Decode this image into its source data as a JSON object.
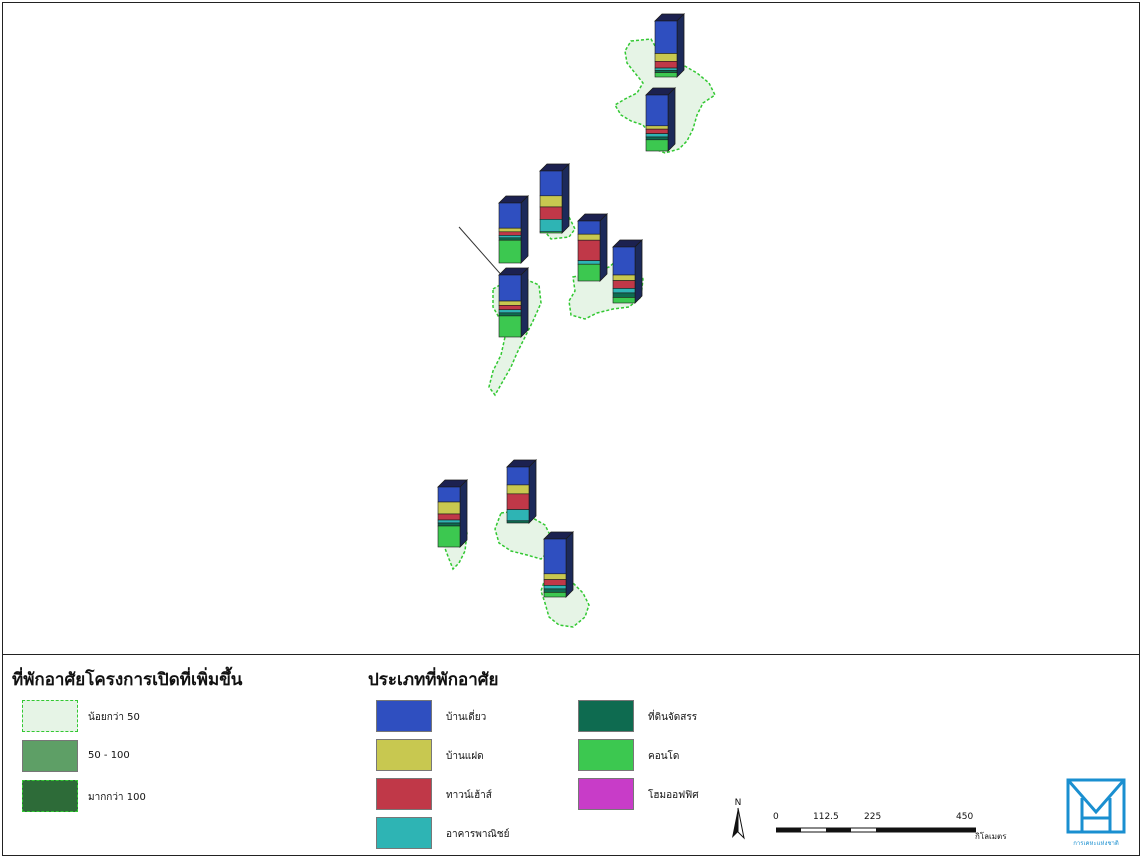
{
  "legend_area": {
    "title": "ที่พักอาศัยโครงการเปิดที่เพิ่มขึ้น",
    "items": [
      {
        "label": "น้อยกว่า 50",
        "color": "#e6f4e6",
        "style": "dashed"
      },
      {
        "label": "50 - 100",
        "color": "#5e9f66",
        "style": "solid"
      },
      {
        "label": "มากกว่า 100",
        "color": "#2d6b38",
        "style": "dashed"
      }
    ]
  },
  "legend_type": {
    "title": "ประเภทที่พักอาศัย",
    "items": [
      {
        "label": "บ้านเดี่ยว",
        "color": "#2f4fc0"
      },
      {
        "label": "บ้านแฝด",
        "color": "#c8c850"
      },
      {
        "label": "ทาวน์เฮ้าส์",
        "color": "#c03848"
      },
      {
        "label": "อาคารพาณิชย์",
        "color": "#2eb4b4"
      },
      {
        "label": "ที่ดินจัดสรร",
        "color": "#0e6b50"
      },
      {
        "label": "คอนโด",
        "color": "#3cc850"
      },
      {
        "label": "โฮมออฟฟิศ",
        "color": "#c83cc8"
      }
    ]
  },
  "map": {
    "colors": {
      "region_fill": "#e6f4e6",
      "region_stroke": "#32c832",
      "bar_outline": "#1a1a1a",
      "bar_side": "#1c2a5a",
      "bar_top": "#1c2150"
    },
    "stacked_bars": [
      {
        "name": "bar-1",
        "segments": [
          {
            "type": 0,
            "share": 0.58
          },
          {
            "type": 1,
            "share": 0.14
          },
          {
            "type": 2,
            "share": 0.12
          },
          {
            "type": 3,
            "share": 0.04
          },
          {
            "type": 4,
            "share": 0.04
          },
          {
            "type": 5,
            "share": 0.08
          }
        ]
      },
      {
        "name": "bar-2",
        "segments": [
          {
            "type": 0,
            "share": 0.55
          },
          {
            "type": 1,
            "share": 0.06
          },
          {
            "type": 2,
            "share": 0.08
          },
          {
            "type": 3,
            "share": 0.06
          },
          {
            "type": 4,
            "share": 0.05
          },
          {
            "type": 5,
            "share": 0.2
          }
        ]
      },
      {
        "name": "bar-3",
        "segments": [
          {
            "type": 0,
            "share": 0.4
          },
          {
            "type": 1,
            "share": 0.18
          },
          {
            "type": 2,
            "share": 0.2
          },
          {
            "type": 3,
            "share": 0.2
          },
          {
            "type": 5,
            "share": 0.02
          }
        ]
      },
      {
        "name": "bar-4",
        "segments": [
          {
            "type": 0,
            "share": 0.42
          },
          {
            "type": 1,
            "share": 0.06
          },
          {
            "type": 2,
            "share": 0.06
          },
          {
            "type": 3,
            "share": 0.04
          },
          {
            "type": 4,
            "share": 0.04
          },
          {
            "type": 5,
            "share": 0.38
          }
        ]
      },
      {
        "name": "bar-5",
        "segments": [
          {
            "type": 0,
            "share": 0.22
          },
          {
            "type": 1,
            "share": 0.1
          },
          {
            "type": 2,
            "share": 0.34
          },
          {
            "type": 3,
            "share": 0.06
          },
          {
            "type": 5,
            "share": 0.28
          }
        ]
      },
      {
        "name": "bar-6",
        "segments": [
          {
            "type": 0,
            "share": 0.5
          },
          {
            "type": 1,
            "share": 0.1
          },
          {
            "type": 2,
            "share": 0.14
          },
          {
            "type": 3,
            "share": 0.08
          },
          {
            "type": 4,
            "share": 0.08
          },
          {
            "type": 5,
            "share": 0.1
          }
        ]
      },
      {
        "name": "bar-7",
        "segments": [
          {
            "type": 0,
            "share": 0.42
          },
          {
            "type": 1,
            "share": 0.07
          },
          {
            "type": 2,
            "share": 0.07
          },
          {
            "type": 3,
            "share": 0.05
          },
          {
            "type": 4,
            "share": 0.05
          },
          {
            "type": 5,
            "share": 0.34
          }
        ]
      },
      {
        "name": "bar-8",
        "segments": [
          {
            "type": 0,
            "share": 0.25
          },
          {
            "type": 1,
            "share": 0.2
          },
          {
            "type": 2,
            "share": 0.1
          },
          {
            "type": 3,
            "share": 0.05
          },
          {
            "type": 4,
            "share": 0.05
          },
          {
            "type": 5,
            "share": 0.35
          }
        ]
      },
      {
        "name": "bar-9",
        "segments": [
          {
            "type": 0,
            "share": 0.32
          },
          {
            "type": 1,
            "share": 0.16
          },
          {
            "type": 2,
            "share": 0.28
          },
          {
            "type": 3,
            "share": 0.2
          },
          {
            "type": 4,
            "share": 0.04
          }
        ]
      },
      {
        "name": "bar-10",
        "segments": [
          {
            "type": 0,
            "share": 0.6
          },
          {
            "type": 1,
            "share": 0.1
          },
          {
            "type": 2,
            "share": 0.1
          },
          {
            "type": 3,
            "share": 0.06
          },
          {
            "type": 4,
            "share": 0.06
          },
          {
            "type": 5,
            "share": 0.08
          }
        ]
      }
    ]
  },
  "north_label": "N",
  "scale": {
    "ticks": [
      "0",
      "112.5",
      "225",
      "450"
    ],
    "unit": "กิโลเมตร"
  },
  "logo": {
    "text": "การเคหะแห่งชาติ",
    "color": "#1a8fd0"
  }
}
